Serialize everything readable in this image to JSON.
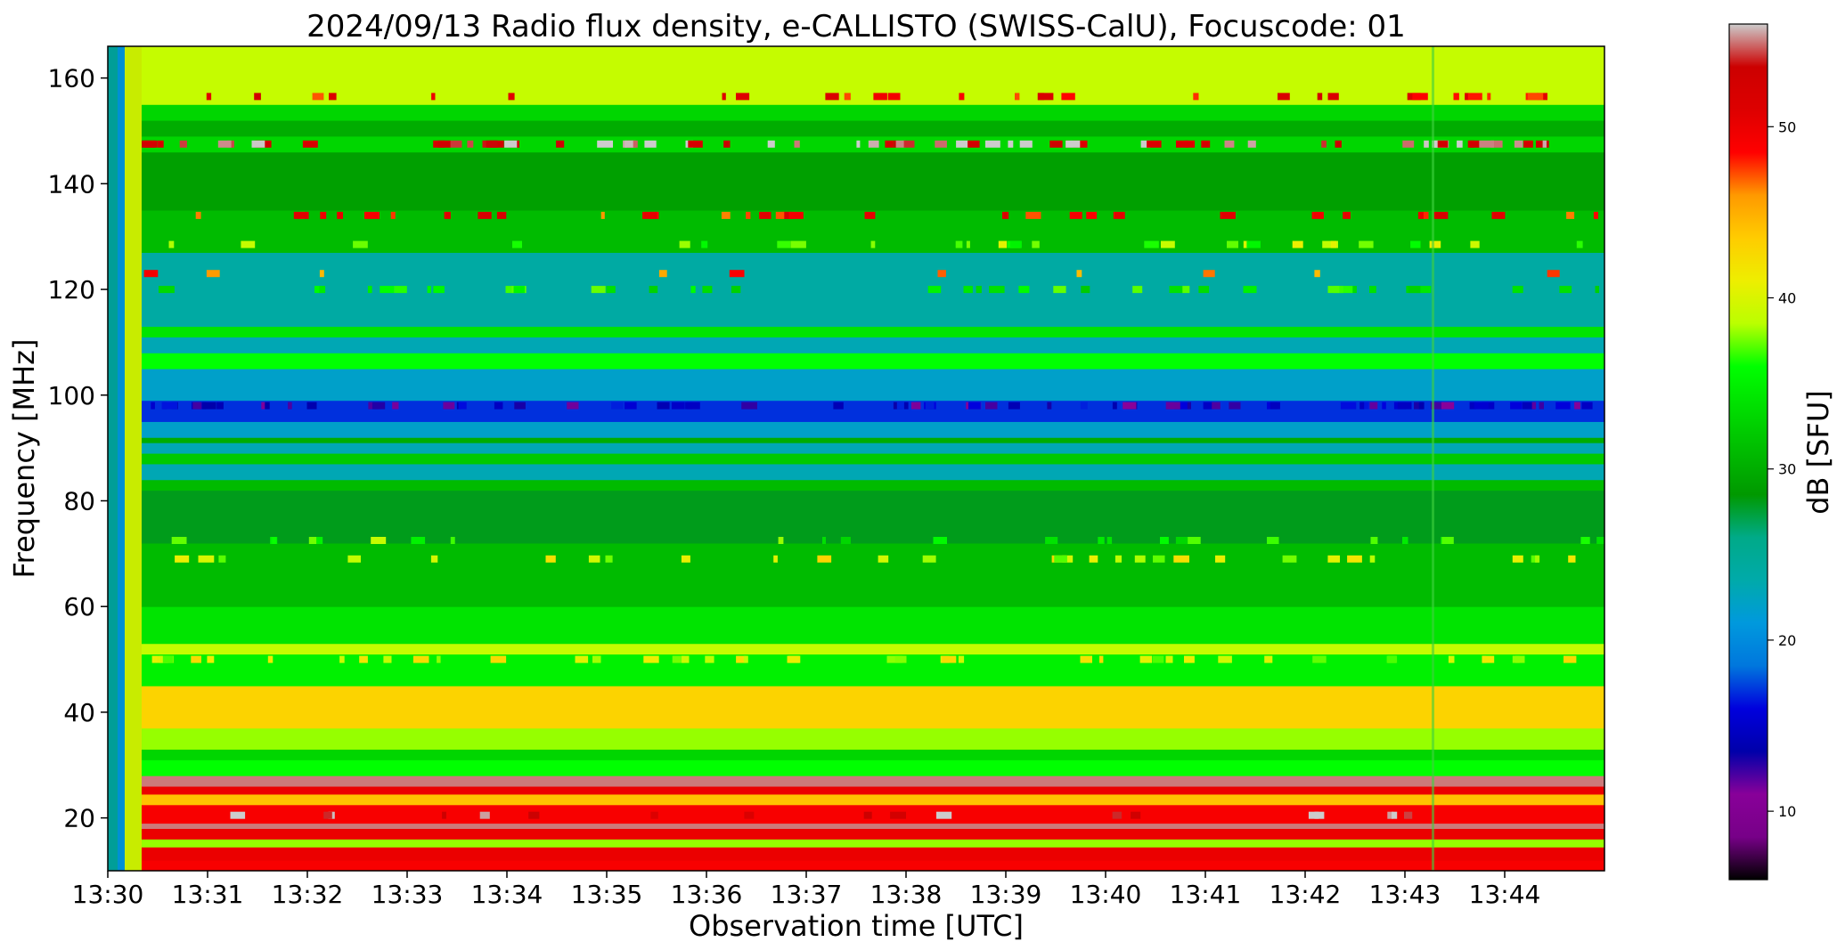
{
  "chart_data": {
    "type": "heatmap",
    "title": "2024/09/13  Radio flux density, e-CALLISTO (SWISS-CalU), Focuscode: 01",
    "xlabel": "Observation time [UTC]",
    "ylabel": "Frequency [MHz]",
    "x_ticks": [
      "13:30",
      "13:31",
      "13:32",
      "13:33",
      "13:34",
      "13:35",
      "13:36",
      "13:37",
      "13:38",
      "13:39",
      "13:40",
      "13:41",
      "13:42",
      "13:43",
      "13:44"
    ],
    "x_range_minutes": [
      0,
      15
    ],
    "y_ticks": [
      20,
      40,
      60,
      80,
      100,
      120,
      140,
      160
    ],
    "ylim": [
      10,
      166
    ],
    "colorbar": {
      "label": "dB [SFU]",
      "ticks": [
        10,
        20,
        30,
        40,
        50
      ],
      "range": [
        6,
        56
      ],
      "colormap": "nipy_spectral"
    },
    "spectrum_profile": [
      {
        "f_lo": 10,
        "f_hi": 12,
        "db": 49
      },
      {
        "f_lo": 12,
        "f_hi": 14.5,
        "db": 50
      },
      {
        "f_lo": 14.5,
        "f_hi": 16,
        "db": 38
      },
      {
        "f_lo": 16,
        "f_hi": 18,
        "db": 50
      },
      {
        "f_lo": 18,
        "f_hi": 19,
        "db": 55
      },
      {
        "f_lo": 19,
        "f_hi": 22.5,
        "db": 49
      },
      {
        "f_lo": 22.5,
        "f_hi": 24.5,
        "db": 44
      },
      {
        "f_lo": 24.5,
        "f_hi": 26,
        "db": 50
      },
      {
        "f_lo": 26,
        "f_hi": 28,
        "db": 55
      },
      {
        "f_lo": 28,
        "f_hi": 31,
        "db": 36
      },
      {
        "f_lo": 31,
        "f_hi": 33,
        "db": 33
      },
      {
        "f_lo": 33,
        "f_hi": 37,
        "db": 38
      },
      {
        "f_lo": 37,
        "f_hi": 45,
        "db": 43
      },
      {
        "f_lo": 45,
        "f_hi": 51,
        "db": 35
      },
      {
        "f_lo": 51,
        "f_hi": 53,
        "db": 39
      },
      {
        "f_lo": 53,
        "f_hi": 60,
        "db": 34
      },
      {
        "f_lo": 60,
        "f_hi": 72,
        "db": 31
      },
      {
        "f_lo": 72,
        "f_hi": 82,
        "db": 28
      },
      {
        "f_lo": 82,
        "f_hi": 84,
        "db": 31
      },
      {
        "f_lo": 84,
        "f_hi": 87,
        "db": 23
      },
      {
        "f_lo": 87,
        "f_hi": 89,
        "db": 32
      },
      {
        "f_lo": 89,
        "f_hi": 91,
        "db": 23
      },
      {
        "f_lo": 91,
        "f_hi": 92,
        "db": 30
      },
      {
        "f_lo": 92,
        "f_hi": 95,
        "db": 22
      },
      {
        "f_lo": 95,
        "f_hi": 99,
        "db": 17
      },
      {
        "f_lo": 99,
        "f_hi": 105,
        "db": 22
      },
      {
        "f_lo": 105,
        "f_hi": 108,
        "db": 36
      },
      {
        "f_lo": 108,
        "f_hi": 111,
        "db": 23
      },
      {
        "f_lo": 111,
        "f_hi": 113,
        "db": 34
      },
      {
        "f_lo": 113,
        "f_hi": 127,
        "db": 24
      },
      {
        "f_lo": 127,
        "f_hi": 135,
        "db": 31
      },
      {
        "f_lo": 135,
        "f_hi": 146,
        "db": 29
      },
      {
        "f_lo": 146,
        "f_hi": 149,
        "db": 33
      },
      {
        "f_lo": 149,
        "f_hi": 152,
        "db": 30
      },
      {
        "f_lo": 152,
        "f_hi": 155,
        "db": 33
      },
      {
        "f_lo": 155,
        "f_hi": 166,
        "db": 39
      }
    ]
  }
}
